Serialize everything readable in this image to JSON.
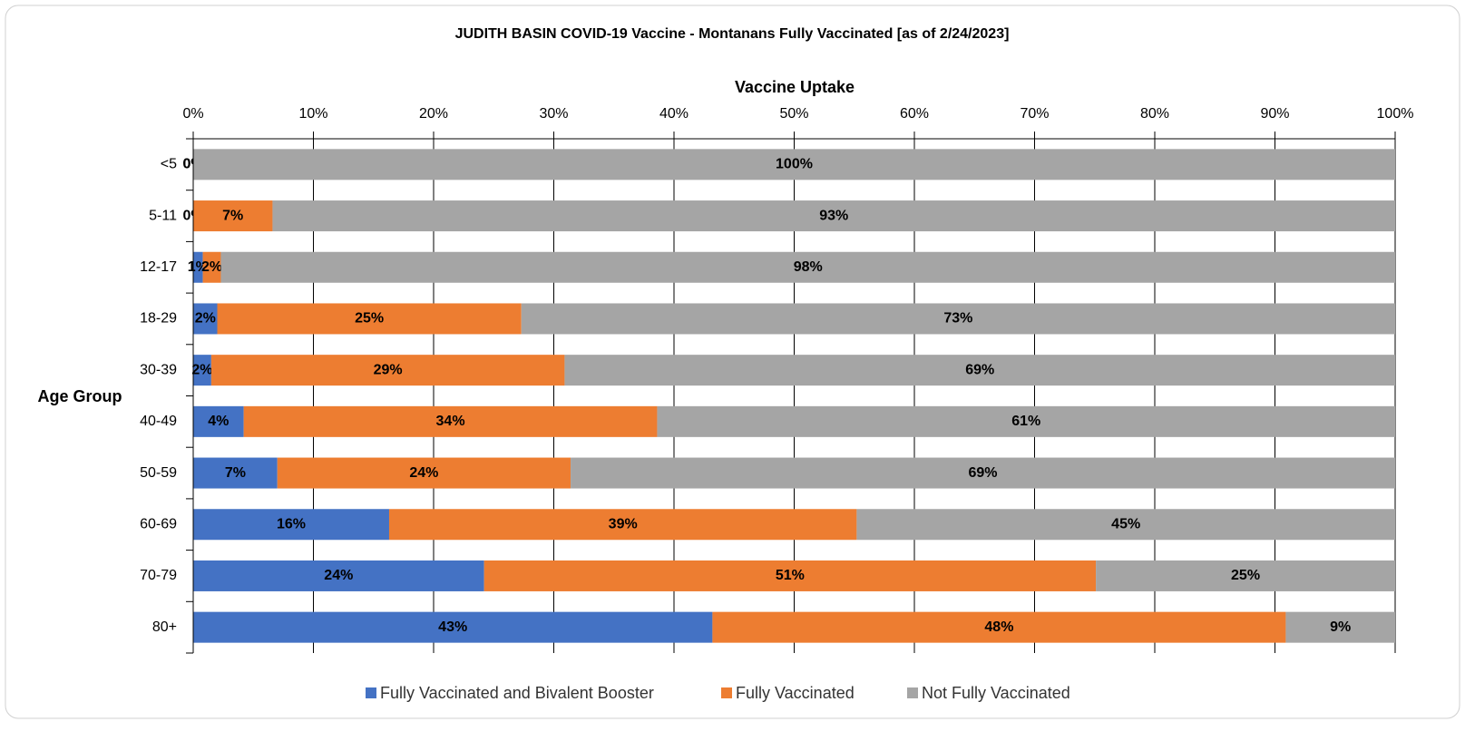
{
  "chart_data": {
    "type": "stacked_barh",
    "title": "JUDITH BASIN COVID-19 Vaccine - Montanans Fully Vaccinated [as of 2/24/2023]",
    "x_label": "Vaccine Uptake",
    "y_label": "Age Group",
    "categories": [
      "<5",
      "5-11",
      "12-17",
      "18-29",
      "30-39",
      "40-49",
      "50-59",
      "60-69",
      "70-79",
      "80+"
    ],
    "series": [
      {
        "name": "Fully Vaccinated and Bivalent Booster",
        "color": "#4472c4",
        "values": [
          0,
          0,
          0.8,
          2.0,
          1.5,
          4.2,
          7.0,
          16.3,
          24.2,
          43.2
        ],
        "value_labels": [
          "0%",
          "0%",
          "1%",
          "2%",
          "2%",
          "4%",
          "7%",
          "16%",
          "24%",
          "43%"
        ]
      },
      {
        "name": "Fully Vaccinated",
        "color": "#ed7d31",
        "values": [
          0,
          6.6,
          1.5,
          25.3,
          29.4,
          34.4,
          24.4,
          38.9,
          50.9,
          47.7
        ],
        "value_labels": [
          "0%",
          "7%",
          "2%",
          "25%",
          "29%",
          "34%",
          "24%",
          "39%",
          "51%",
          "48%"
        ]
      },
      {
        "name": "Not Fully Vaccinated",
        "color": "#a5a5a5",
        "values": [
          100,
          93.4,
          97.7,
          72.7,
          69.1,
          61.4,
          68.6,
          44.8,
          24.9,
          9.1
        ],
        "value_labels": [
          "100%",
          "93%",
          "98%",
          "73%",
          "69%",
          "61%",
          "69%",
          "45%",
          "25%",
          "9%"
        ]
      }
    ],
    "xlim": [
      0,
      100
    ],
    "xticks": [
      {
        "value": 0,
        "label": "0%"
      },
      {
        "value": 10,
        "label": "10%"
      },
      {
        "value": 20,
        "label": "20%"
      },
      {
        "value": 30,
        "label": "30%"
      },
      {
        "value": 40,
        "label": "40%"
      },
      {
        "value": 50,
        "label": "50%"
      },
      {
        "value": 60,
        "label": "60%"
      },
      {
        "value": 70,
        "label": "70%"
      },
      {
        "value": 80,
        "label": "80%"
      },
      {
        "value": 90,
        "label": "90%"
      },
      {
        "value": 100,
        "label": "100%"
      }
    ],
    "grid": true,
    "legend": "bottom"
  }
}
